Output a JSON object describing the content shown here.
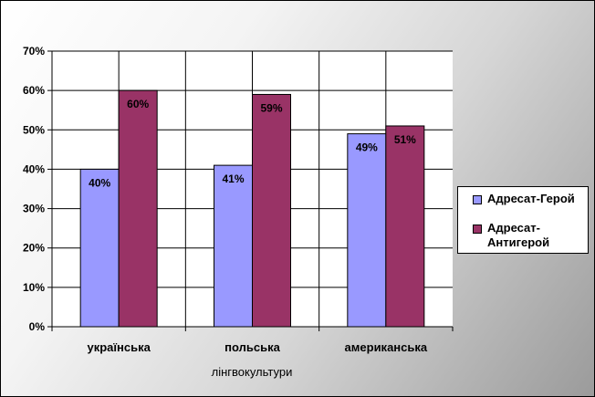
{
  "chart_data": {
    "type": "bar",
    "categories": [
      "українська",
      "польська",
      "американська"
    ],
    "xlabel": "лінгвокультури",
    "ylabel": "",
    "ylim": [
      0,
      70
    ],
    "yticks": [
      "0%",
      "10%",
      "20%",
      "30%",
      "40%",
      "50%",
      "60%",
      "70%"
    ],
    "grid": true,
    "legend_position": "right",
    "series": [
      {
        "name": "Адресат-Герой",
        "color": "#9999ff",
        "values": [
          40,
          41,
          49
        ],
        "labels": [
          "40%",
          "41%",
          "49%"
        ]
      },
      {
        "name": "Адресат-\nАнтигерой",
        "color": "#993366",
        "values": [
          60,
          59,
          51
        ],
        "labels": [
          "60%",
          "59%",
          "51%"
        ]
      }
    ]
  }
}
